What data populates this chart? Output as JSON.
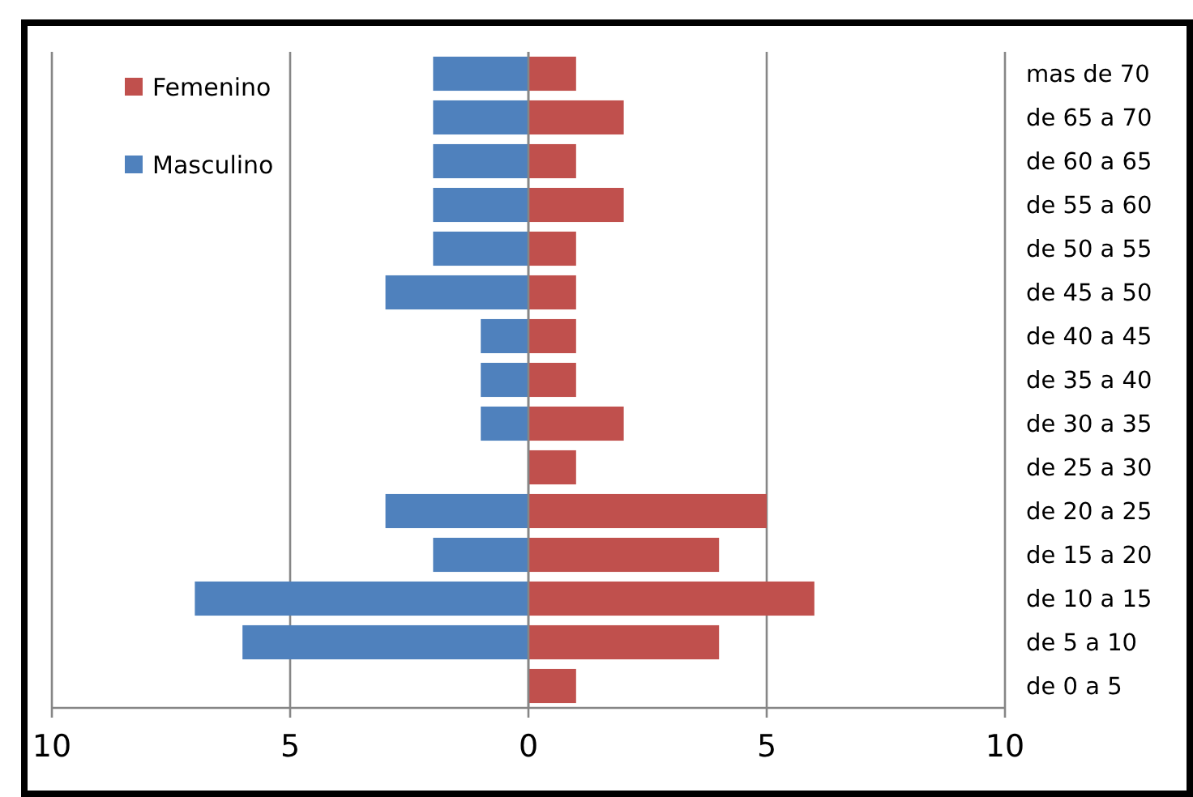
{
  "chart_data": {
    "type": "bar",
    "orientation": "horizontal",
    "categories": [
      "mas de 70",
      "de 65 a 70",
      "de 60 a 65",
      "de 55 a 60",
      "de 50 a 55",
      "de 45 a 50",
      "de 40 a 45",
      "de 35 a 40",
      "de 30 a 35",
      "de 25 a 30",
      "de 20 a 25",
      "de 15 a 20",
      "de 10 a 15",
      "de 5 a 10",
      "de 0 a 5"
    ],
    "series": [
      {
        "name": "Femenino",
        "color": "#c0504d",
        "values": [
          1,
          2,
          1,
          2,
          1,
          1,
          1,
          1,
          2,
          1,
          5,
          4,
          6,
          4,
          1
        ]
      },
      {
        "name": "Masculino",
        "color": "#4f81bd",
        "values": [
          -2,
          -2,
          -2,
          -2,
          -2,
          -3,
          -1,
          -1,
          -1,
          0,
          -3,
          -2,
          -7,
          -6,
          0
        ]
      }
    ],
    "xlim": [
      -10,
      10
    ],
    "xticks": [
      {
        "value": -10,
        "label": "10"
      },
      {
        "value": -5,
        "label": "5"
      },
      0,
      5,
      10
    ],
    "grid": "x",
    "legend": "top left",
    "stacked": true
  }
}
